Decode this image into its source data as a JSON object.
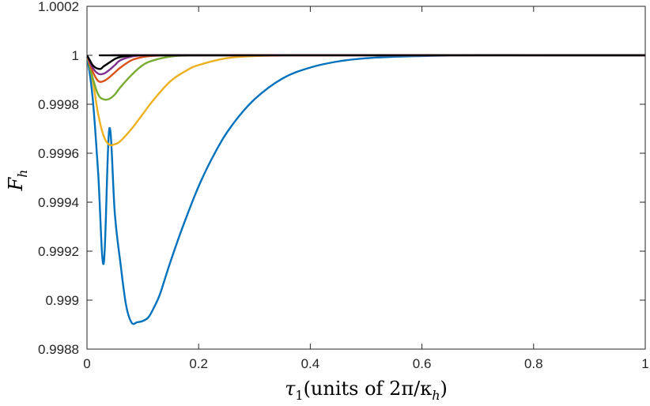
{
  "chart_data": {
    "type": "line",
    "title": "",
    "xlabel_parts": {
      "symbol": "τ",
      "subscript": "1",
      "text": "(units of 2π/κ",
      "subscript2": "h",
      "close": ")"
    },
    "ylabel_parts": {
      "symbol": "F",
      "subscript": "h"
    },
    "xlim": [
      0,
      1
    ],
    "ylim": [
      0.9988,
      1.0002
    ],
    "xticks": [
      0,
      0.2,
      0.4,
      0.6,
      0.8,
      1
    ],
    "xtick_labels": [
      "0",
      "0.2",
      "0.4",
      "0.6",
      "0.8",
      "1"
    ],
    "yticks": [
      0.9988,
      0.999,
      0.9992,
      0.9994,
      0.9996,
      0.9998,
      1,
      1.0002
    ],
    "ytick_labels": [
      "0.9988",
      "0.999",
      "0.9992",
      "0.9994",
      "0.9996",
      "0.9998",
      "1",
      "1.0002"
    ],
    "grid": false,
    "series": [
      {
        "color": "#0072BD",
        "x": [
          0,
          0.01,
          0.02,
          0.03,
          0.04,
          0.05,
          0.06,
          0.07,
          0.08,
          0.09,
          0.1,
          0.11,
          0.12,
          0.13,
          0.14,
          0.15,
          0.17,
          0.2,
          0.23,
          0.26,
          0.3,
          0.35,
          0.4,
          0.45,
          0.5,
          0.55,
          0.6,
          0.65,
          0.7,
          0.75,
          0.8,
          1.0
        ],
        "y": [
          1.0,
          0.99983,
          0.99952,
          0.99915,
          0.9997,
          0.99935,
          0.99915,
          0.99898,
          0.998908,
          0.99891,
          0.998915,
          0.99893,
          0.99897,
          0.99902,
          0.99909,
          0.99916,
          0.99929,
          0.999465,
          0.999605,
          0.999715,
          0.99982,
          0.999905,
          0.99995,
          0.999975,
          0.999988,
          0.999994,
          0.999997,
          0.999999,
          1.0,
          1.0,
          1.0,
          1.0
        ]
      },
      {
        "color": "#EDB120",
        "x": [
          0,
          0.01,
          0.02,
          0.03,
          0.04,
          0.05,
          0.06,
          0.08,
          0.1,
          0.12,
          0.15,
          0.18,
          0.2,
          0.25,
          0.3,
          0.35,
          0.4,
          1.0
        ],
        "y": [
          1.0,
          0.9999,
          0.99976,
          0.99967,
          0.999635,
          0.999637,
          0.99965,
          0.9997,
          0.99976,
          0.99982,
          0.999895,
          0.99994,
          0.99996,
          0.999988,
          0.999997,
          0.999999,
          1.0,
          1.0
        ]
      },
      {
        "color": "#77AC30",
        "x": [
          0,
          0.01,
          0.02,
          0.03,
          0.04,
          0.05,
          0.06,
          0.08,
          0.1,
          0.12,
          0.15,
          0.18,
          0.2,
          0.3,
          1.0
        ],
        "y": [
          1.0,
          0.99991,
          0.99984,
          0.99982,
          0.999822,
          0.99984,
          0.99987,
          0.99992,
          0.99996,
          0.99998,
          0.999995,
          0.999999,
          1.0,
          1.0,
          1.0
        ]
      },
      {
        "color": "#D95319",
        "x": [
          0,
          0.01,
          0.02,
          0.03,
          0.04,
          0.05,
          0.06,
          0.08,
          0.1,
          0.12,
          0.15,
          0.2,
          1.0
        ],
        "y": [
          1.0,
          0.999935,
          0.999895,
          0.999895,
          0.99991,
          0.99993,
          0.99995,
          0.99998,
          0.999993,
          0.999998,
          1.0,
          1.0,
          1.0
        ]
      },
      {
        "color": "#7E2F8E",
        "x": [
          0,
          0.01,
          0.02,
          0.03,
          0.04,
          0.05,
          0.06,
          0.08,
          0.1,
          0.12,
          1.0
        ],
        "y": [
          1.0,
          0.99995,
          0.999925,
          0.999925,
          0.99994,
          0.99996,
          0.99998,
          0.999995,
          1.0,
          1.0,
          1.0
        ]
      },
      {
        "color": "#000000",
        "x": [
          0,
          0.005,
          0.01,
          0.015,
          0.02,
          0.025,
          0.03,
          0.04,
          0.05,
          0.06,
          0.08,
          0.1,
          1.0
        ],
        "y": [
          1.0,
          0.99998,
          0.99996,
          0.99995,
          0.999945,
          0.999945,
          0.999955,
          0.99997,
          0.999985,
          0.999993,
          0.999999,
          1.0,
          1.0
        ]
      }
    ]
  }
}
